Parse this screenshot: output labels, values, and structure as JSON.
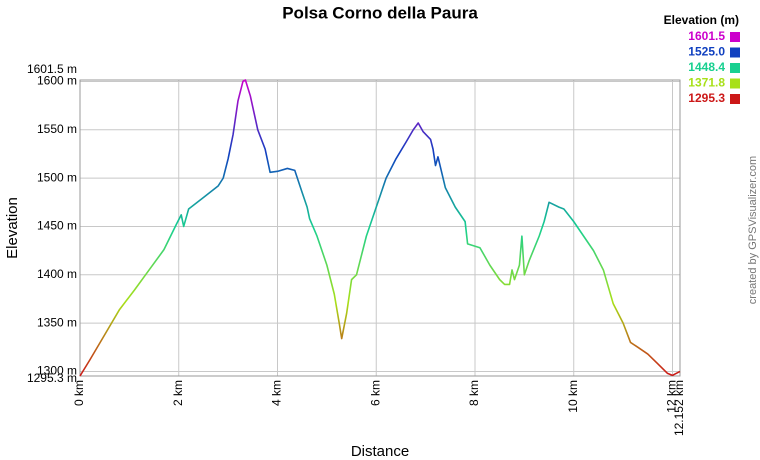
{
  "chart_data": {
    "type": "line",
    "title": "Polsa Corno della Paura",
    "x_label": "Distance",
    "y_label": "Elevation",
    "credit": "created by GPSVisualizer.com",
    "legend": {
      "title": "Elevation (m)",
      "entries": [
        {
          "value": 1601.5,
          "label": "1601.5",
          "color": "#cc00cc"
        },
        {
          "value": 1525.0,
          "label": "1525.0",
          "color": "#1040c0"
        },
        {
          "value": 1448.4,
          "label": "1448.4",
          "color": "#18d090"
        },
        {
          "value": 1371.8,
          "label": "1371.8",
          "color": "#a8e018"
        },
        {
          "value": 1295.3,
          "label": "1295.3",
          "color": "#cc1818"
        }
      ]
    },
    "grid": true,
    "xlim": [
      0,
      12.152
    ],
    "ylim": [
      1295.3,
      1601.5
    ],
    "xticks": [
      {
        "value": 0,
        "label": "0 km"
      },
      {
        "value": 2,
        "label": "2 km"
      },
      {
        "value": 4,
        "label": "4 km"
      },
      {
        "value": 6,
        "label": "6 km"
      },
      {
        "value": 8,
        "label": "8 km"
      },
      {
        "value": 10,
        "label": "10 km"
      },
      {
        "value": 12,
        "label": "12 km"
      },
      {
        "value": 12.152,
        "label": "12.152 km"
      }
    ],
    "yticks": [
      {
        "value": 1295.3,
        "label": "1295.3 m"
      },
      {
        "value": 1300,
        "label": "1300 m"
      },
      {
        "value": 1350,
        "label": "1350 m"
      },
      {
        "value": 1400,
        "label": "1400 m"
      },
      {
        "value": 1450,
        "label": "1450 m"
      },
      {
        "value": 1500,
        "label": "1500 m"
      },
      {
        "value": 1550,
        "label": "1550 m"
      },
      {
        "value": 1600,
        "label": "1600 m"
      },
      {
        "value": 1601.5,
        "label": "1601.5 m"
      }
    ],
    "x": [
      0,
      0.2,
      0.5,
      0.8,
      1.1,
      1.4,
      1.7,
      1.95,
      2.05,
      2.1,
      2.2,
      2.5,
      2.8,
      2.9,
      3.0,
      3.1,
      3.2,
      3.3,
      3.35,
      3.45,
      3.6,
      3.75,
      3.85,
      4.0,
      4.2,
      4.35,
      4.5,
      4.6,
      4.65,
      4.8,
      5.0,
      5.15,
      5.25,
      5.3,
      5.4,
      5.5,
      5.6,
      5.8,
      6.0,
      6.2,
      6.4,
      6.6,
      6.75,
      6.85,
      6.95,
      7.1,
      7.15,
      7.2,
      7.25,
      7.4,
      7.6,
      7.8,
      7.85,
      8.1,
      8.3,
      8.5,
      8.6,
      8.7,
      8.75,
      8.8,
      8.9,
      8.95,
      9.0,
      9.1,
      9.3,
      9.4,
      9.5,
      9.7,
      9.8,
      10.0,
      10.2,
      10.4,
      10.6,
      10.8,
      11.0,
      11.15,
      11.3,
      11.5,
      11.7,
      11.9,
      12.0,
      12.152
    ],
    "series": [
      {
        "name": "Elevation",
        "values": [
          1295.3,
          1312,
          1338,
          1364,
          1384,
          1405,
          1426,
          1452,
          1462,
          1450,
          1468,
          1480,
          1492,
          1500,
          1520,
          1545,
          1580,
          1600,
          1601.5,
          1585,
          1550,
          1530,
          1506,
          1507,
          1510,
          1508,
          1485,
          1470,
          1458,
          1440,
          1410,
          1380,
          1350,
          1334,
          1360,
          1395,
          1400,
          1440,
          1470,
          1500,
          1520,
          1537,
          1550,
          1557,
          1548,
          1540,
          1530,
          1513,
          1522,
          1490,
          1470,
          1455,
          1432,
          1428,
          1410,
          1395,
          1390,
          1390,
          1405,
          1395,
          1410,
          1440,
          1400,
          1415,
          1440,
          1455,
          1475,
          1470,
          1468,
          1455,
          1440,
          1425,
          1405,
          1370,
          1350,
          1330,
          1325,
          1318,
          1308,
          1298,
          1296,
          1300
        ]
      }
    ]
  }
}
